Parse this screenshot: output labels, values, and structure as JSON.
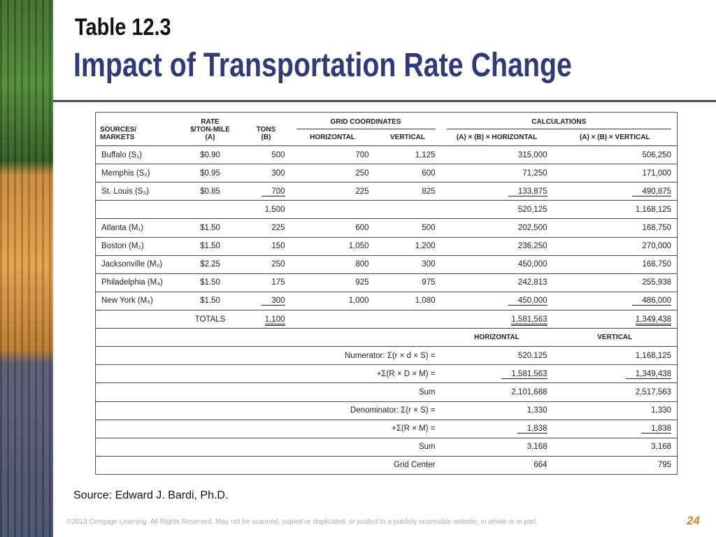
{
  "header": {
    "label": "Table 12.3",
    "title": "Impact of Transportation Rate Change"
  },
  "table": {
    "columns": [
      "SOURCES/\nMARKETS",
      "RATE\n$/TON-MILE\n(A)",
      "TONS\n(B)",
      "HORIZONTAL",
      "VERTICAL",
      "(A) × (B) × HORIZONTAL",
      "(A) × (B) × VERTICAL"
    ],
    "groups": [
      "GRID COORDINATES",
      "CALCULATIONS"
    ],
    "rows": [
      [
        "Buffalo (S₁)",
        "$0.90",
        "500",
        "700",
        "1,125",
        "315,000",
        "506,250"
      ],
      [
        "Memphis (S₂)",
        "$0.95",
        "300",
        "250",
        "600",
        "71,250",
        "171,000"
      ],
      [
        "St. Louis (S₃)",
        "$0.85",
        "700",
        "225",
        "825",
        "133,875",
        "490,875"
      ],
      [
        null,
        null,
        "1,500",
        null,
        null,
        "520,125",
        "1,168,125"
      ],
      [
        "Atlanta (M₁)",
        "$1.50",
        "225",
        "600",
        "500",
        "202,500",
        "168,750"
      ],
      [
        "Boston (M₂)",
        "$1.50",
        "150",
        "1,050",
        "1,200",
        "236,250",
        "270,000"
      ],
      [
        "Jacksonville (M₃)",
        "$2.25",
        "250",
        "800",
        "300",
        "450,000",
        "168,750"
      ],
      [
        "Philadelphia (M₄)",
        "$1.50",
        "175",
        "925",
        "975",
        "242,813",
        "255,938"
      ],
      [
        "New York (M₅)",
        "$1.50",
        "300",
        "1,000",
        "1,080",
        "450,000",
        "486,000"
      ],
      [
        null,
        "TOTALS",
        "1,100",
        null,
        null,
        "1,581,563",
        "1,349,438"
      ]
    ],
    "calc_header": [
      "HORIZONTAL",
      "VERTICAL"
    ],
    "calc_rows": [
      [
        "Numerator: Σ(r × d × S) =",
        "520,125",
        "1,168,125"
      ],
      [
        "+Σ(R × D × M) =",
        "1,581,563",
        "1,349,438"
      ],
      [
        "Sum",
        "2,101,688",
        "2,517,563"
      ],
      [
        "Denominator: Σ(r × S) =",
        "1,330",
        "1,330"
      ],
      [
        "+Σ(R × M) =",
        "1,838",
        "1,838"
      ],
      [
        "Sum",
        "3,168",
        "3,168"
      ],
      [
        "Grid Center",
        "664",
        "795"
      ]
    ]
  },
  "source": "Source:  Edward J. Bardi, Ph.D.",
  "footer": {
    "copyright": "©2013 Cengage Learning. All Rights Reserved. May not be scanned, copied or duplicated, or posted to a publicly accessible website, in whole or in part.",
    "page": "24"
  }
}
